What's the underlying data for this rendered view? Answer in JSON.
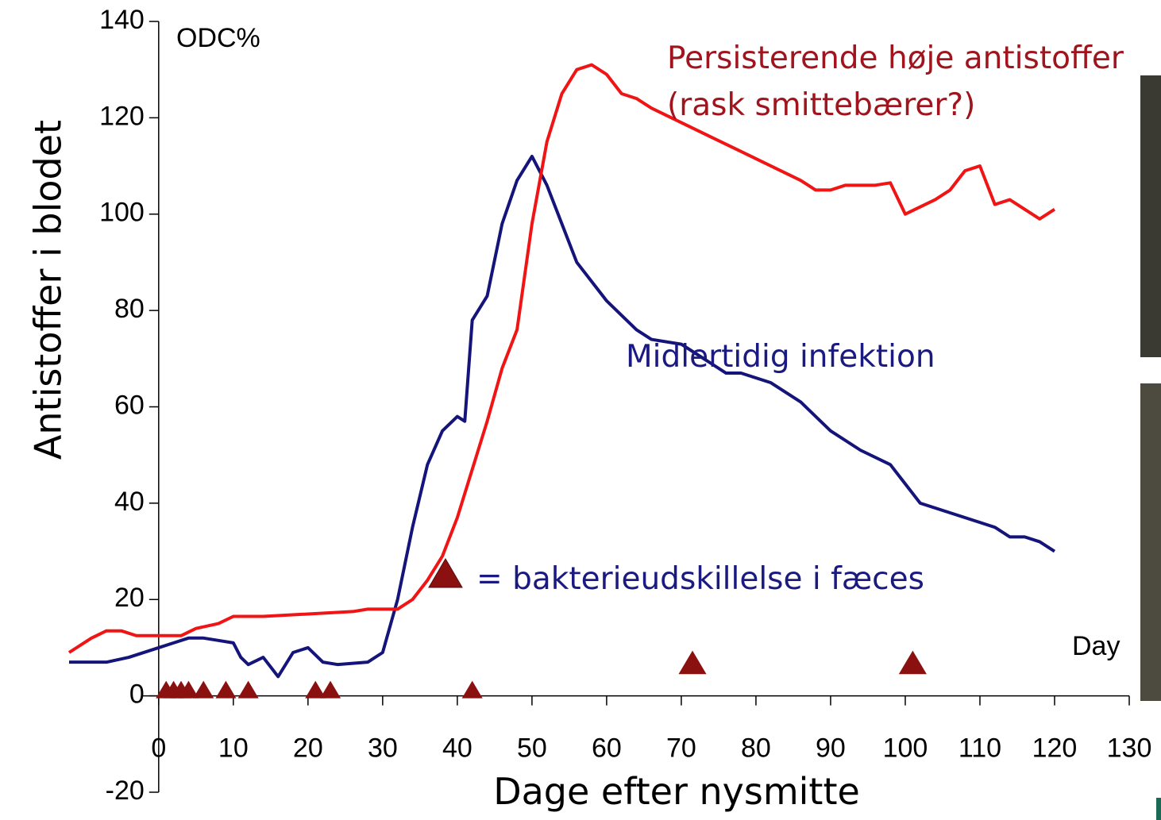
{
  "chart_data": {
    "type": "line",
    "y_label": "Antistoffer i blodet",
    "x_label": "Dage efter nysmitte",
    "y_unit": "ODC%",
    "x_unit": "Day",
    "annotations": [
      "Persisterende høje antistoffer",
      "(rask smittebærer?)",
      "Midlertidig infektion"
    ],
    "xlim": [
      -12,
      130
    ],
    "ylim": [
      -20,
      140
    ],
    "xticks": [
      0,
      10,
      20,
      30,
      40,
      50,
      60,
      70,
      80,
      90,
      100,
      110,
      120,
      130
    ],
    "yticks": [
      -20,
      0,
      20,
      40,
      60,
      80,
      100,
      120,
      140
    ],
    "series": [
      {
        "name": "Midlertidig infektion",
        "color": "#14147a",
        "x": [
          -12,
          -7,
          -4,
          0,
          2,
          4,
          6,
          8,
          10,
          11,
          12,
          14,
          16,
          18,
          20,
          22,
          24,
          28,
          30,
          32,
          34,
          36,
          38,
          40,
          41,
          42,
          44,
          46,
          48,
          50,
          52,
          54,
          56,
          60,
          64,
          66,
          70,
          74,
          76,
          78,
          82,
          86,
          90,
          94,
          98,
          102,
          106,
          110,
          112,
          114,
          116,
          118,
          120
        ],
        "values": [
          7,
          7,
          8,
          10,
          11,
          12,
          12,
          11.5,
          11,
          8,
          6.5,
          8,
          4,
          9,
          10,
          7,
          6.5,
          7,
          9,
          20,
          35,
          48,
          55,
          58,
          57,
          78,
          83,
          98,
          107,
          112,
          106,
          98,
          90,
          82,
          76,
          74,
          73,
          69,
          67,
          67,
          65,
          61,
          55,
          51,
          48,
          40,
          38,
          36,
          35,
          33,
          33,
          32,
          30
        ]
      },
      {
        "name": "Persisterende høje antistoffer",
        "color": "#f01414",
        "x": [
          -12,
          -9,
          -7,
          -5,
          -3,
          0,
          3,
          5,
          8,
          10,
          14,
          20,
          26,
          28,
          32,
          34,
          36,
          38,
          40,
          42,
          44,
          46,
          48,
          50,
          52,
          54,
          56,
          58,
          60,
          62,
          64,
          66,
          70,
          74,
          78,
          82,
          86,
          88,
          90,
          92,
          96,
          98,
          100,
          104,
          106,
          108,
          110,
          112,
          114,
          118,
          120
        ],
        "values": [
          9,
          12,
          13.5,
          13.5,
          12.5,
          12.5,
          12.5,
          14,
          15,
          16.5,
          16.5,
          17,
          17.5,
          18,
          18,
          20,
          24,
          29,
          37,
          47,
          57,
          68,
          76,
          98,
          115,
          125,
          130,
          131,
          129,
          125,
          124,
          122,
          119,
          116,
          113,
          110,
          107,
          105,
          105,
          106,
          106,
          106.5,
          100,
          103,
          105,
          109,
          110,
          102,
          103,
          99,
          101
        ]
      }
    ],
    "shedding_events": {
      "name": "= bakterieudskillelse i fæces",
      "color": "#8b1010",
      "x": [
        1,
        2,
        3,
        4,
        6,
        9,
        12,
        21,
        23,
        42,
        71.5,
        101
      ],
      "values": [
        0,
        0,
        0,
        0,
        0,
        0,
        0,
        0,
        0,
        0,
        5,
        5
      ]
    }
  }
}
